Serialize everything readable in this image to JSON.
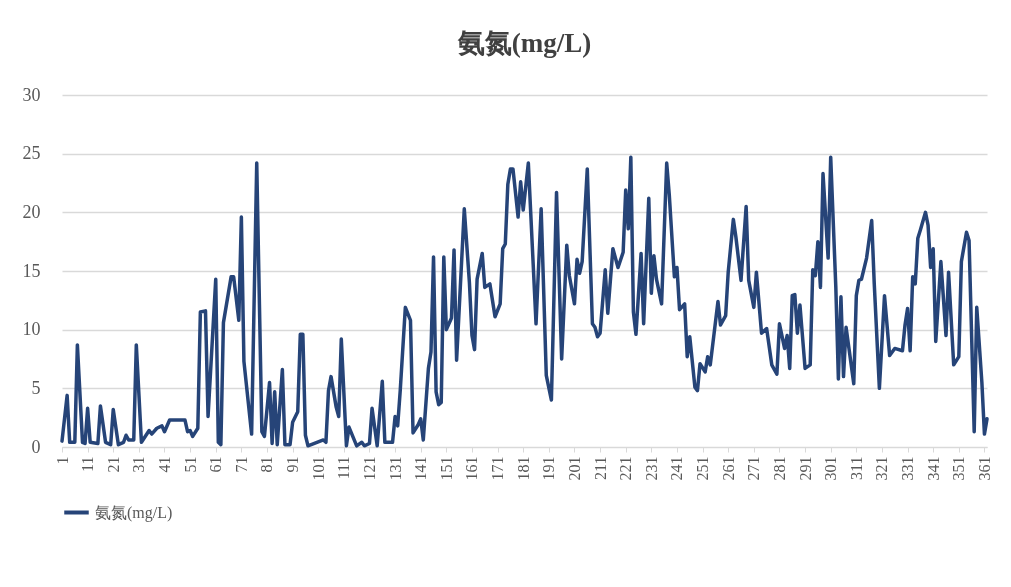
{
  "chart_data": {
    "type": "line",
    "title": "氨氮(mg/L)",
    "xlim": [
      1,
      362
    ],
    "xticks": [
      1,
      11,
      21,
      31,
      41,
      51,
      61,
      71,
      81,
      91,
      101,
      111,
      121,
      131,
      141,
      151,
      161,
      171,
      181,
      191,
      201,
      211,
      221,
      231,
      241,
      251,
      261,
      271,
      281,
      291,
      301,
      311,
      321,
      331,
      341,
      351,
      361
    ],
    "ylim": [
      0,
      30
    ],
    "yticks": [
      0,
      5,
      10,
      15,
      20,
      25,
      30
    ],
    "grid": "y",
    "legend": "bottom",
    "line_style": "solid",
    "marker": "none",
    "series": [
      {
        "name": "氨氮(mg/L)",
        "color": "#264478",
        "x": [
          1,
          3,
          4,
          6,
          7,
          9,
          10,
          11,
          12,
          15,
          16,
          18,
          20,
          21,
          23,
          25,
          26,
          27,
          29,
          30,
          32,
          35,
          36,
          38,
          40,
          41,
          43,
          49,
          50,
          51,
          52,
          54,
          55,
          57,
          58,
          61,
          62,
          63,
          64,
          67,
          68,
          70,
          71,
          72,
          75,
          77,
          79,
          80,
          82,
          83,
          84,
          85,
          87,
          88,
          90,
          91,
          93,
          94,
          95,
          96,
          97,
          103,
          104,
          105,
          106,
          108,
          109,
          110,
          112,
          113,
          116,
          118,
          119,
          121,
          122,
          124,
          126,
          127,
          130,
          131,
          132,
          133,
          135,
          137,
          138,
          140,
          141,
          142,
          144,
          145,
          146,
          147,
          148,
          149,
          150,
          151,
          153,
          154,
          155,
          158,
          160,
          161,
          162,
          163,
          165,
          166,
          168,
          170,
          172,
          173,
          174,
          175,
          176,
          177,
          179,
          180,
          181,
          183,
          186,
          188,
          190,
          192,
          194,
          196,
          198,
          199,
          201,
          202,
          203,
          204,
          206,
          208,
          209,
          210,
          211,
          213,
          214,
          216,
          218,
          220,
          221,
          222,
          223,
          224,
          225,
          227,
          228,
          230,
          231,
          232,
          233,
          235,
          237,
          238,
          240,
          241,
          242,
          244,
          245,
          246,
          248,
          249,
          250,
          252,
          253,
          254,
          257,
          258,
          260,
          261,
          263,
          264,
          266,
          268,
          269,
          271,
          272,
          274,
          276,
          278,
          280,
          281,
          283,
          284,
          285,
          286,
          287,
          288,
          289,
          291,
          293,
          294,
          295,
          296,
          297,
          298,
          300,
          301,
          303,
          304,
          305,
          306,
          307,
          310,
          311,
          312,
          313,
          315,
          317,
          318,
          320,
          322,
          324,
          326,
          329,
          330,
          331,
          332,
          333,
          334,
          335,
          336,
          338,
          339,
          340,
          341,
          342,
          344,
          346,
          347,
          349,
          351,
          352,
          354,
          355,
          357,
          358,
          360,
          361,
          362
        ],
        "values": [
          0.5,
          4.4,
          0.4,
          0.4,
          8.7,
          0.4,
          0.3,
          3.3,
          0.4,
          0.3,
          3.5,
          0.4,
          0.2,
          3.2,
          0.2,
          0.4,
          1.0,
          0.6,
          0.6,
          8.7,
          0.4,
          1.4,
          1.1,
          1.6,
          1.8,
          1.3,
          2.3,
          2.3,
          1.3,
          1.4,
          0.9,
          1.6,
          11.5,
          11.6,
          2.6,
          14.3,
          0.4,
          0.2,
          10.6,
          14.5,
          14.5,
          10.8,
          19.6,
          7.3,
          1.1,
          24.2,
          1.3,
          0.9,
          5.5,
          0.3,
          4.7,
          0.2,
          6.6,
          0.2,
          0.2,
          2.1,
          3,
          9.6,
          9.6,
          1.0,
          0.1,
          0.6,
          0.4,
          4.8,
          6.0,
          3.4,
          2.6,
          9.2,
          0.1,
          1.7,
          0.1,
          0.4,
          0.1,
          0.3,
          3.3,
          0.1,
          5.6,
          0.4,
          0.4,
          2.6,
          1.8,
          4.8,
          11.9,
          10.8,
          1.2,
          1.9,
          2.4,
          0.6,
          6.7,
          8.1,
          16.2,
          4.7,
          3.6,
          3.8,
          16.2,
          10,
          11,
          16.8,
          7.4,
          20.3,
          14,
          9.5,
          8.3,
          14.3,
          16.5,
          13.6,
          13.9,
          11.1,
          12.2,
          16.9,
          17.3,
          22.4,
          23.7,
          23.7,
          19.6,
          22.6,
          20.2,
          24.2,
          10.5,
          20.3,
          6.1,
          4,
          21.7,
          7.5,
          17.2,
          14.6,
          12.2,
          16,
          14.8,
          15.8,
          23.7,
          10.5,
          10.2,
          9.4,
          9.7,
          15.1,
          11.4,
          16.9,
          15.3,
          16.6,
          21.9,
          18.6,
          24.7,
          11.5,
          9.6,
          16.5,
          10.5,
          21.2,
          13.1,
          16.3,
          14.3,
          12.2,
          24.2,
          21.5,
          14.5,
          15.3,
          11.7,
          12.2,
          7.7,
          9.4,
          5.1,
          4.8,
          7.1,
          6.4,
          7.7,
          7.0,
          12.4,
          10.4,
          11.2,
          14.9,
          19.4,
          17.9,
          14.2,
          20.5,
          14.2,
          11.9,
          14.9,
          9.7,
          10.1,
          7.0,
          6.2,
          10.5,
          8.4,
          9.5,
          6.7,
          12.9,
          13,
          9.7,
          12.1,
          6.7,
          7,
          15.1,
          14.6,
          17.5,
          13.6,
          23.3,
          16.1,
          24.7,
          13.6,
          5.8,
          12.8,
          6.0,
          10.2,
          5.4,
          12.9,
          14.2,
          14.3,
          16.1,
          19.3,
          13.9,
          5.0,
          12.9,
          7.8,
          8.4,
          8.2,
          10.4,
          11.8,
          8.2,
          14.5,
          13.9,
          17.8,
          18.5,
          20.0,
          18.9,
          15.3,
          16.9,
          9.0,
          15.8,
          9.5,
          14.9,
          7.0,
          7.7,
          15.8,
          18.3,
          17.6,
          1.3,
          11.9,
          5.5,
          1.1,
          2.4
        ]
      }
    ]
  }
}
